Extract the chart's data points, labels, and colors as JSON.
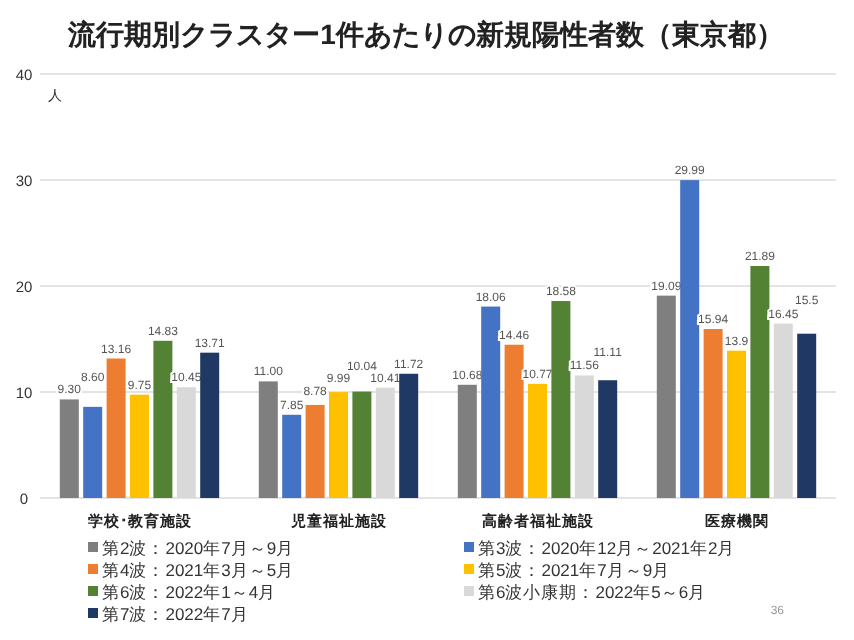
{
  "chart_data": {
    "type": "bar",
    "title": "流行期別クラスター1件あたりの新規陽性者数（東京都）",
    "ylabel": "人",
    "categories": [
      "学校･教育施設",
      "児童福祉施設",
      "高齢者福祉施設",
      "医療機関"
    ],
    "series": [
      {
        "name": "第2波：2020年7月～9月",
        "color": "#7f7f7f",
        "values": [
          9.3,
          11.0,
          10.68,
          19.09
        ],
        "value_labels": [
          "9.30",
          "11.00",
          "10.68",
          "19.09"
        ]
      },
      {
        "name": "第3波：2020年12月～2021年2月",
        "color": "#4472c4",
        "values": [
          8.6,
          7.85,
          18.06,
          29.99
        ],
        "value_labels": [
          "8.60",
          "7.85",
          "18.06",
          "29.99"
        ]
      },
      {
        "name": "第4波：2021年3月～5月",
        "color": "#ed7d31",
        "values": [
          13.16,
          8.78,
          14.46,
          15.94
        ],
        "value_labels": [
          "13.16",
          "8.78",
          "14.46",
          "15.94"
        ]
      },
      {
        "name": "第5波：2021年7月～9月",
        "color": "#ffc000",
        "values": [
          9.75,
          9.99,
          10.77,
          13.9
        ],
        "value_labels": [
          "9.75",
          "9.99",
          "10.77",
          "13.9"
        ]
      },
      {
        "name": "第6波：2022年1～4月",
        "color": "#548235",
        "values": [
          14.83,
          10.04,
          18.58,
          21.89
        ],
        "value_labels": [
          "14.83",
          "10.04",
          "18.58",
          "21.89"
        ]
      },
      {
        "name": "第6波小康期：2022年5～6月",
        "color": "#d9d9d9",
        "values": [
          10.45,
          10.41,
          11.56,
          16.45
        ],
        "value_labels": [
          "10.45",
          "10.41",
          "11.56",
          "16.45"
        ]
      },
      {
        "name": "第7波：2022年7月",
        "color": "#203864",
        "values": [
          13.71,
          11.72,
          11.11,
          15.5
        ],
        "value_labels": [
          "13.71",
          "11.72",
          "11.11",
          "15.5"
        ]
      }
    ],
    "ylim": [
      0,
      40
    ],
    "yticks": [
      0,
      10,
      20,
      30,
      40
    ],
    "grid": "y",
    "legend": "bottom",
    "annotations": [
      "36"
    ]
  }
}
